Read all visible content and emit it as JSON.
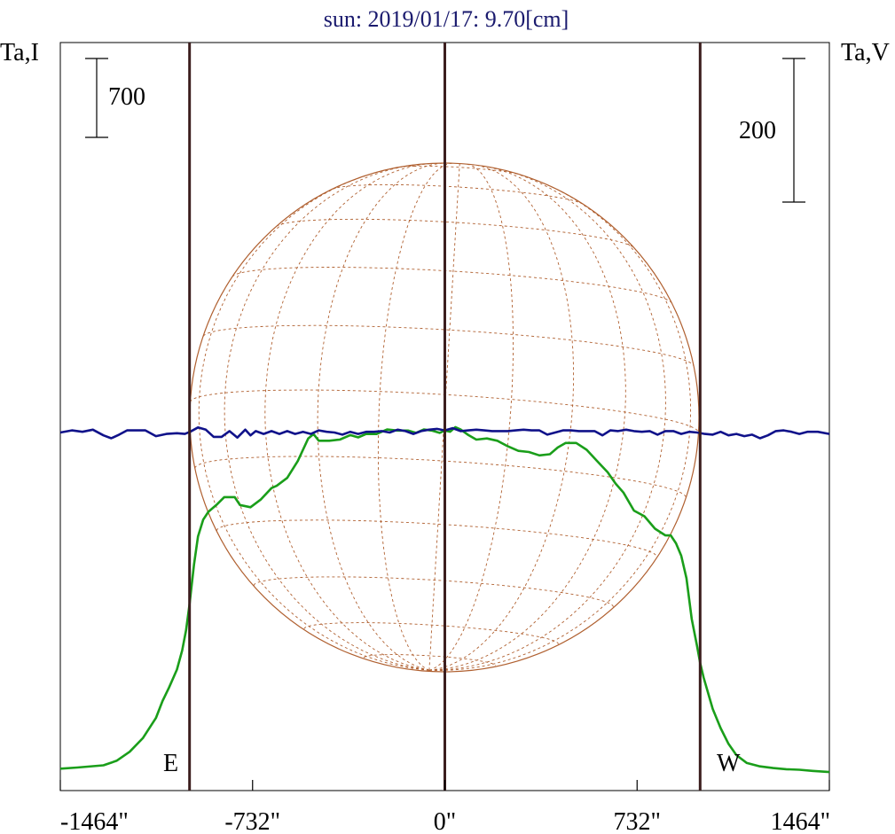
{
  "chart_data": {
    "type": "line",
    "title": "sun: 2019/01/17: 9.70[cm]",
    "left_axis_label": "Ta,I",
    "right_axis_label": "Ta,V",
    "x_ticks": [
      "-1464\"",
      "-732\"",
      "0\"",
      "732\"",
      "1464\""
    ],
    "x_tick_values": [
      -1464,
      -732,
      0,
      732,
      1464
    ],
    "xlim": [
      -1464,
      1464
    ],
    "scale_bar_left": "700",
    "scale_bar_right": "200",
    "limb_labels": {
      "east": "E",
      "west": "W"
    },
    "vertical_markers": [
      -972,
      0,
      972
    ],
    "disk": {
      "radius_arcsec": 972,
      "grid": "dashed heliographic"
    },
    "colors": {
      "stokes_i": "#1a9e1a",
      "stokes_v": "#10128a",
      "markers": "#3c1e1e",
      "disk": "#b06030",
      "title": "#1a1a6e"
    },
    "series": [
      {
        "name": "I",
        "units": "relative (scale bar 700)",
        "x": [
          -1464,
          -1400,
          -1300,
          -1250,
          -1200,
          -1150,
          -1100,
          -1075,
          -1050,
          -1020,
          -1000,
          -985,
          -972,
          -955,
          -940,
          -920,
          -900,
          -870,
          -840,
          -800,
          -780,
          -740,
          -700,
          -660,
          -640,
          -600,
          -560,
          -520,
          -500,
          -480,
          -440,
          -400,
          -360,
          -330,
          -300,
          -260,
          -220,
          -180,
          -140,
          -110,
          -80,
          -50,
          -20,
          0,
          20,
          40,
          60,
          90,
          120,
          160,
          200,
          240,
          280,
          320,
          360,
          400,
          430,
          460,
          500,
          540,
          580,
          620,
          650,
          680,
          720,
          760,
          800,
          840,
          860,
          880,
          900,
          920,
          940,
          960,
          972,
          985,
          1000,
          1020,
          1050,
          1080,
          1110,
          1150,
          1200,
          1250,
          1300,
          1350,
          1400,
          1464
        ],
        "y": [
          -10,
          0,
          20,
          60,
          140,
          260,
          440,
          590,
          710,
          870,
          1040,
          1220,
          1450,
          1800,
          2050,
          2200,
          2270,
          2330,
          2400,
          2400,
          2330,
          2310,
          2380,
          2480,
          2500,
          2570,
          2720,
          2920,
          2960,
          2900,
          2900,
          2910,
          2950,
          2930,
          2960,
          2960,
          3000,
          2990,
          2990,
          2970,
          3000,
          2990,
          2970,
          2990,
          2980,
          3020,
          3000,
          2950,
          2910,
          2920,
          2900,
          2850,
          2810,
          2800,
          2770,
          2780,
          2840,
          2880,
          2880,
          2820,
          2720,
          2620,
          2520,
          2440,
          2280,
          2230,
          2120,
          2060,
          2060,
          1990,
          1880,
          1680,
          1320,
          1080,
          930,
          800,
          680,
          520,
          350,
          210,
          110,
          40,
          10,
          -5,
          -15,
          -20,
          -30,
          -40
        ]
      },
      {
        "name": "V",
        "units": "relative (scale bar 200)",
        "x": [
          -1464,
          -1420,
          -1380,
          -1340,
          -1300,
          -1270,
          -1240,
          -1210,
          -1180,
          -1140,
          -1100,
          -1060,
          -1020,
          -990,
          -970,
          -940,
          -910,
          -880,
          -850,
          -820,
          -790,
          -760,
          -740,
          -720,
          -690,
          -660,
          -630,
          -600,
          -570,
          -540,
          -510,
          -480,
          -450,
          -420,
          -390,
          -360,
          -330,
          -300,
          -270,
          -240,
          -210,
          -180,
          -150,
          -120,
          -90,
          -60,
          -30,
          0,
          30,
          60,
          90,
          120,
          150,
          180,
          210,
          240,
          270,
          300,
          330,
          360,
          390,
          420,
          450,
          480,
          510,
          540,
          570,
          600,
          630,
          660,
          690,
          720,
          750,
          780,
          810,
          840,
          870,
          900,
          930,
          960,
          990,
          1020,
          1050,
          1080,
          1110,
          1140,
          1170,
          1200,
          1230,
          1260,
          1290,
          1320,
          1350,
          1380,
          1420,
          1464
        ],
        "y": [
          0,
          3,
          1,
          4,
          -4,
          -8,
          -3,
          3,
          3,
          3,
          -5,
          -2,
          -1,
          -2,
          1,
          7,
          4,
          -6,
          -6,
          2,
          -7,
          4,
          -4,
          2,
          -2,
          2,
          -2,
          2,
          -2,
          1,
          -2,
          3,
          1,
          0,
          -3,
          1,
          -2,
          1,
          1,
          2,
          0,
          4,
          2,
          -2,
          2,
          4,
          5,
          3,
          6,
          2,
          3,
          4,
          3,
          2,
          2,
          2,
          3,
          4,
          3,
          3,
          -3,
          0,
          3,
          3,
          2,
          2,
          2,
          -4,
          3,
          2,
          4,
          2,
          1,
          2,
          -3,
          2,
          2,
          -2,
          1,
          0,
          -2,
          -3,
          1,
          -4,
          -2,
          -5,
          -3,
          -8,
          -4,
          2,
          3,
          1,
          -2,
          1,
          1,
          -2
        ]
      }
    ]
  }
}
